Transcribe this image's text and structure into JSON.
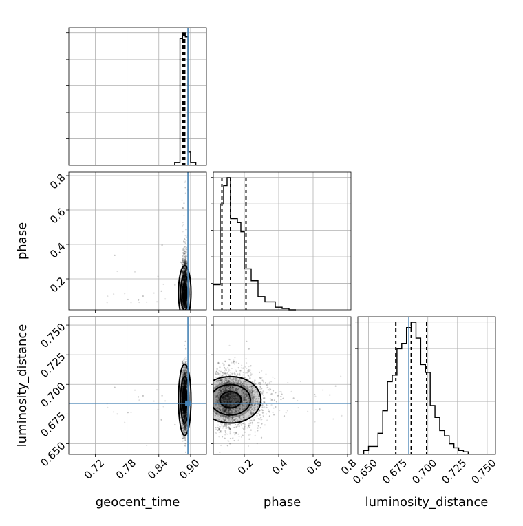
{
  "chart_data": {
    "type": "corner",
    "parameters": [
      "geocent_time",
      "phase",
      "luminosity_distance"
    ],
    "truths": {
      "geocent_time": 0.895,
      "phase": null,
      "luminosity_distance": 0.684
    },
    "colors": {
      "truth": "#4682b4",
      "hist": "#000000",
      "scatter": "#000000",
      "grid": "#b0b0b0"
    },
    "axes": {
      "geocent_time": {
        "range": [
          0.67,
          0.93
        ],
        "ticks": [
          0.72,
          0.78,
          0.84,
          0.9
        ],
        "tick_labels": [
          "0.72",
          "0.78",
          "0.84",
          "0.90"
        ]
      },
      "phase": {
        "range": [
          0.02,
          0.82
        ],
        "ticks": [
          0.2,
          0.4,
          0.6,
          0.8
        ],
        "tick_labels": [
          "0.2",
          "0.4",
          "0.6",
          "0.8"
        ]
      },
      "luminosity_distance": {
        "range": [
          0.641,
          0.757
        ],
        "ticks": [
          0.65,
          0.675,
          0.7,
          0.725,
          0.75
        ],
        "tick_labels": [
          "0.650",
          "0.675",
          "0.700",
          "0.725",
          "0.750"
        ]
      }
    },
    "histograms": {
      "geocent_time": {
        "edges": [
          0.87,
          0.88,
          0.885,
          0.89,
          0.895,
          0.9,
          0.91
        ],
        "counts": [
          0.02,
          0.96,
          1.0,
          0.97,
          0.1,
          0.02
        ],
        "quantiles": [
          0.885,
          0.887,
          0.889
        ]
      },
      "phase": {
        "edges": [
          0.02,
          0.06,
          0.08,
          0.1,
          0.12,
          0.14,
          0.16,
          0.18,
          0.2,
          0.22,
          0.24,
          0.26,
          0.28,
          0.3,
          0.32,
          0.34,
          0.38,
          0.42,
          0.46,
          0.5
        ],
        "counts": [
          0.19,
          0.8,
          0.94,
          1.0,
          0.69,
          0.69,
          0.66,
          0.59,
          0.31,
          0.31,
          0.22,
          0.22,
          0.1,
          0.1,
          0.06,
          0.06,
          0.02,
          0.01,
          0.0
        ],
        "quantiles": [
          0.07,
          0.12,
          0.21
        ]
      },
      "luminosity_distance": {
        "edges": [
          0.646,
          0.65,
          0.654,
          0.658,
          0.662,
          0.666,
          0.67,
          0.674,
          0.678,
          0.682,
          0.686,
          0.69,
          0.694,
          0.698,
          0.702,
          0.706,
          0.71,
          0.714,
          0.718,
          0.722,
          0.726,
          0.73,
          0.734
        ],
        "counts": [
          0.03,
          0.06,
          0.06,
          0.16,
          0.33,
          0.55,
          0.6,
          0.8,
          0.84,
          0.96,
          1.0,
          0.88,
          0.68,
          0.62,
          0.37,
          0.28,
          0.18,
          0.14,
          0.08,
          0.05,
          0.03,
          0.02
        ],
        "quantiles": [
          0.673,
          0.686,
          0.699
        ]
      }
    },
    "scatter_samples": 2600,
    "correlation": {
      "geocent_time": {
        "mean": 0.889,
        "sd": 0.0025
      },
      "phase": {
        "mode": 0.12,
        "sd": 0.075
      },
      "luminosity_distance": {
        "mean": 0.687,
        "sd": 0.013
      }
    }
  }
}
